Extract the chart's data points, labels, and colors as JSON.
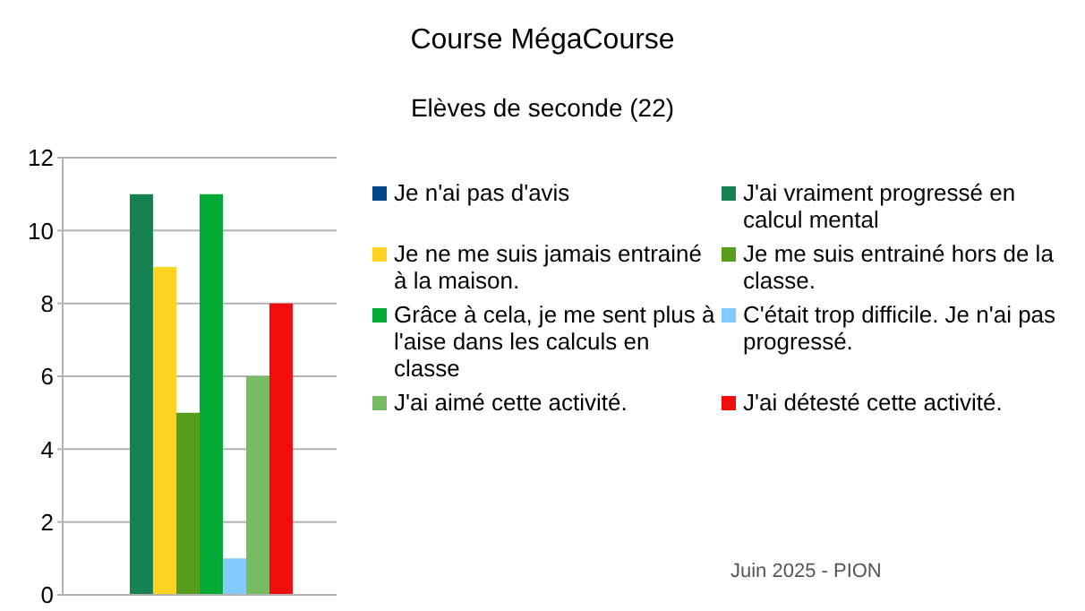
{
  "chart_data": {
    "type": "bar",
    "title": "Course MégaCourse",
    "subtitle": "Elèves de seconde (22)",
    "categories": [
      null
    ],
    "series": [
      {
        "name": "Je n'ai pas d'avis",
        "color": "#004586",
        "values": [
          0
        ]
      },
      {
        "name": "J'ai vraiment progressé en calcul mental",
        "color": "#168253",
        "values": [
          11
        ]
      },
      {
        "name": "Je ne me suis jamais entrainé à la maison.",
        "color": "#ffd320",
        "values": [
          9
        ]
      },
      {
        "name": "Je me suis entrainé hors de la classe.",
        "color": "#579d1c",
        "values": [
          5
        ]
      },
      {
        "name": "Grâce à cela, je me sent plus à l'aise dans les calculs en classe",
        "color": "#00a933",
        "values": [
          11
        ]
      },
      {
        "name": "C'était trop difficile. Je n'ai pas progressé.",
        "color": "#83caff",
        "values": [
          1
        ]
      },
      {
        "name": "J'ai aimé cette activité.",
        "color": "#77bc65",
        "values": [
          6
        ]
      },
      {
        "name": "J'ai détesté cette activité.",
        "color": "#f10d0c",
        "values": [
          8
        ]
      }
    ],
    "ylim": [
      0,
      12
    ],
    "yticks": [
      0,
      2,
      4,
      6,
      8,
      10,
      12
    ],
    "grid": "y",
    "legend": "right",
    "annotations": [
      "Juin 2025 - PION"
    ]
  }
}
